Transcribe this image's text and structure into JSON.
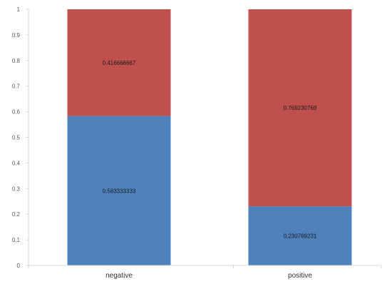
{
  "chart_data": {
    "type": "bar",
    "stacked": true,
    "categories": [
      "negative",
      "positive"
    ],
    "series": [
      {
        "values": [
          0.583333333,
          0.230769231
        ],
        "color": "#4F81BD",
        "labels": [
          "0.583333333",
          "0.230769231"
        ]
      },
      {
        "values": [
          0.416666667,
          0.769230769
        ],
        "color": "#C0504D",
        "labels": [
          "0.416666667",
          "0.769230769"
        ]
      }
    ],
    "ylim": [
      0,
      1
    ],
    "yticks": [
      "0",
      "0.1",
      "0.2",
      "0.3",
      "0.4",
      "0.5",
      "0.6",
      "0.7",
      "0.8",
      "0.9",
      "1"
    ],
    "title": "",
    "xlabel": "",
    "ylabel": "",
    "grid": false,
    "legend": "none",
    "axis_color": "#D9D9D9"
  }
}
